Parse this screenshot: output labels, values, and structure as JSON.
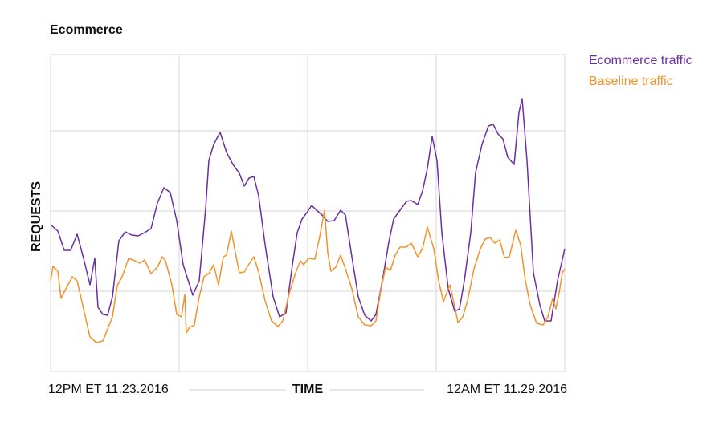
{
  "chart_data": {
    "type": "line",
    "title": "Ecommerce",
    "ylabel": "REQUESTS",
    "xlabel": "TIME",
    "x_start_label": "12PM ET 11.23.2016",
    "x_end_label": "12AM ET 11.29.2016",
    "xlim": [
      0,
      128
    ],
    "xticks": [
      32,
      64,
      96
    ],
    "ylim": [
      0,
      3.95
    ],
    "yticks": [
      1,
      2,
      3
    ],
    "grid": true,
    "series": [
      {
        "name": "Ecommerce traffic",
        "color": "#6b2fa0",
        "x": [
          0,
          1.8,
          3.4,
          5,
          6.6,
          8.2,
          9.8,
          11,
          11.8,
          13,
          14.2,
          15.4,
          17,
          18.6,
          20.2,
          21.8,
          23.4,
          25,
          26.6,
          28.2,
          29.8,
          31.4,
          33,
          34.6,
          35.4,
          37,
          38.6,
          39.4,
          40.6,
          42.2,
          43.8,
          45.4,
          47,
          48.2,
          49.4,
          50.6,
          51.8,
          53.4,
          55.4,
          57,
          58.6,
          60.2,
          61.4,
          62.6,
          63.8,
          65,
          66.2,
          67.4,
          69,
          70.6,
          72.2,
          73.4,
          75,
          76.6,
          78.2,
          79.8,
          81,
          82.6,
          84.2,
          85.4,
          87,
          88.6,
          89.8,
          91.4,
          92.6,
          93.8,
          95,
          96.2,
          97.4,
          99,
          100.6,
          101.8,
          103,
          104.6,
          105.8,
          107.4,
          109,
          110.2,
          111.4,
          112.6,
          113.8,
          115.4,
          116.6,
          117.4,
          118.6,
          120.2,
          121.8,
          123,
          124.6,
          126.2,
          128
        ],
        "values": [
          1.83,
          1.75,
          1.51,
          1.51,
          1.71,
          1.41,
          1.08,
          1.41,
          0.8,
          0.71,
          0.7,
          0.93,
          1.63,
          1.74,
          1.7,
          1.69,
          1.73,
          1.78,
          2.1,
          2.29,
          2.23,
          1.88,
          1.33,
          1.08,
          0.95,
          1.13,
          2.03,
          2.63,
          2.83,
          2.98,
          2.73,
          2.58,
          2.47,
          2.31,
          2.41,
          2.43,
          2.19,
          1.58,
          0.93,
          0.68,
          0.73,
          1.33,
          1.73,
          1.9,
          1.98,
          2.07,
          2.01,
          1.96,
          1.87,
          1.88,
          2.01,
          1.95,
          1.43,
          0.93,
          0.7,
          0.63,
          0.71,
          1.13,
          1.61,
          1.9,
          2.01,
          2.12,
          2.13,
          2.08,
          2.25,
          2.53,
          2.93,
          2.63,
          1.73,
          1.03,
          0.75,
          0.78,
          1.13,
          1.73,
          2.48,
          2.83,
          3.06,
          3.08,
          2.96,
          2.9,
          2.67,
          2.58,
          3.23,
          3.4,
          2.63,
          1.23,
          0.83,
          0.63,
          0.63,
          1.13,
          1.53
        ]
      },
      {
        "name": "Baseline traffic",
        "color": "#f0932b",
        "x": [
          0,
          0.6,
          1.8,
          2.6,
          3.8,
          5.4,
          6.6,
          8.2,
          9.8,
          11.4,
          13,
          14.2,
          15.4,
          16.6,
          17.8,
          19.4,
          21,
          22.2,
          23.4,
          25,
          26.6,
          27.8,
          28.6,
          30.2,
          31.4,
          32.6,
          33.4,
          33.8,
          34.6,
          35.8,
          37,
          38.2,
          39.4,
          40.6,
          41.8,
          43,
          43.8,
          45,
          46.2,
          47,
          48.2,
          49.4,
          50.6,
          51.8,
          53.4,
          55,
          56.6,
          57.8,
          59.4,
          61,
          62.2,
          63,
          64.2,
          65.8,
          67,
          68.2,
          69,
          69.8,
          71,
          72.2,
          73.4,
          75,
          76.6,
          78.2,
          79.8,
          81,
          82.2,
          83.4,
          84.6,
          85.8,
          87,
          88.6,
          89.8,
          91.4,
          92.6,
          93.8,
          95.4,
          96.6,
          97.8,
          99.4,
          100.6,
          101.4,
          102.6,
          103.8,
          105.4,
          107,
          108.2,
          109.4,
          110.6,
          111.8,
          113,
          114.2,
          115.8,
          117,
          118.2,
          119.4,
          121,
          122.6,
          123.8,
          125,
          125.8,
          126.6,
          127.4,
          128
        ],
        "values": [
          1.13,
          1.31,
          1.25,
          0.91,
          1.03,
          1.18,
          1.13,
          0.78,
          0.43,
          0.36,
          0.38,
          0.53,
          0.68,
          1.07,
          1.18,
          1.41,
          1.38,
          1.35,
          1.39,
          1.22,
          1.3,
          1.43,
          1.38,
          1.08,
          0.71,
          0.68,
          0.96,
          0.48,
          0.55,
          0.58,
          0.93,
          1.18,
          1.22,
          1.33,
          1.08,
          1.43,
          1.45,
          1.75,
          1.43,
          1.23,
          1.24,
          1.34,
          1.43,
          1.24,
          0.88,
          0.63,
          0.56,
          0.63,
          0.97,
          1.23,
          1.38,
          1.33,
          1.41,
          1.4,
          1.68,
          2.01,
          1.48,
          1.25,
          1.3,
          1.45,
          1.28,
          1.03,
          0.68,
          0.58,
          0.57,
          0.63,
          1.01,
          1.3,
          1.26,
          1.45,
          1.55,
          1.55,
          1.6,
          1.43,
          1.53,
          1.8,
          1.53,
          1.13,
          0.87,
          1.08,
          0.81,
          0.61,
          0.68,
          0.88,
          1.28,
          1.53,
          1.65,
          1.67,
          1.6,
          1.64,
          1.42,
          1.43,
          1.76,
          1.58,
          1.13,
          0.83,
          0.6,
          0.58,
          0.68,
          0.91,
          0.78,
          0.98,
          1.23,
          1.28
        ]
      }
    ]
  }
}
